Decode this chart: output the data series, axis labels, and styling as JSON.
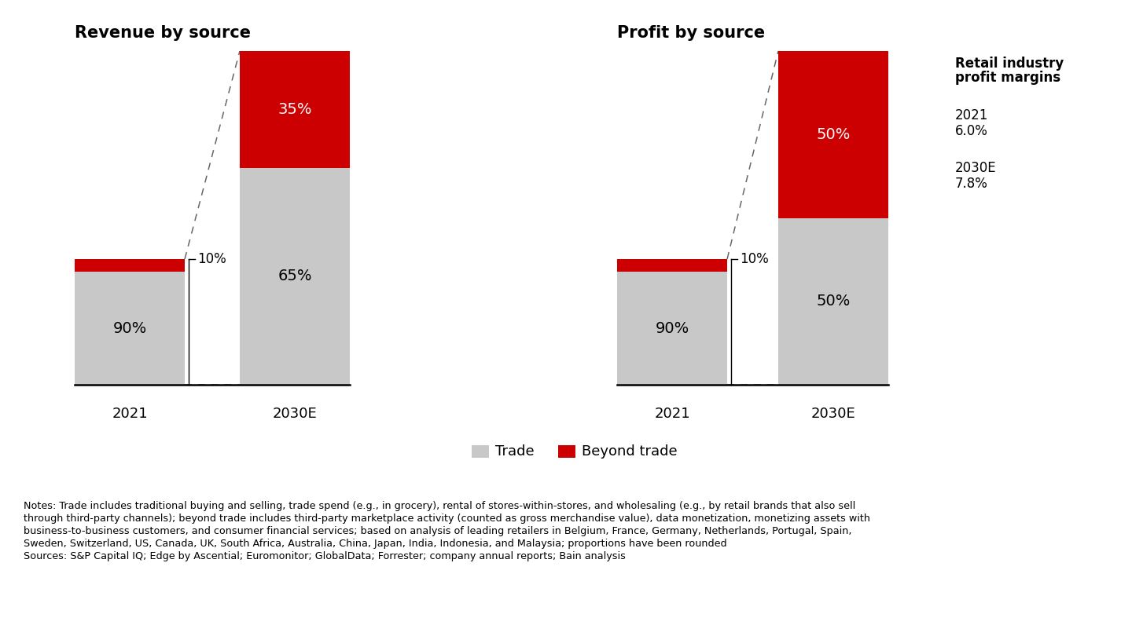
{
  "left_title": "Revenue by source",
  "right_title": "Profit by source",
  "trade_color": "#c8c8c8",
  "beyond_color": "#cc0000",
  "background_color": "#ffffff",
  "revenue_2021_trade": 90,
  "revenue_2021_beyond": 10,
  "revenue_2030_trade": 65,
  "revenue_2030_beyond": 35,
  "profit_2021_trade": 90,
  "profit_2021_beyond": 10,
  "profit_2030_trade": 50,
  "profit_2030_beyond": 50,
  "legend_trade": "Trade",
  "legend_beyond": "Beyond trade",
  "sidebar_title_line1": "Retail industry",
  "sidebar_title_line2": "profit margins",
  "sidebar_2021_label": "2021",
  "sidebar_2021_value": "6.0%",
  "sidebar_2030_label": "2030E",
  "sidebar_2030_value": "7.8%",
  "notes_line1": "Notes: Trade includes traditional buying and selling, trade spend (e.g., in grocery), rental of stores-within-stores, and wholesaling (e.g., by retail brands that also sell",
  "notes_line2": "through third-party channels); beyond trade includes third-party marketplace activity (counted as gross merchandise value), data monetization, monetizing assets with",
  "notes_line3": "business-to-business customers, and consumer financial services; based on analysis of leading retailers in Belgium, France, Germany, Netherlands, Portugal, Spain,",
  "notes_line4": "Sweden, Switzerland, US, Canada, UK, South Africa, Australia, China, Japan, India, Indonesia, and Malaysia; proportions have been rounded",
  "sources_line": "Sources: S&P Capital IQ; Edge by Ascential; Euromonitor; GlobalData; Forrester; company annual reports; Bain analysis"
}
